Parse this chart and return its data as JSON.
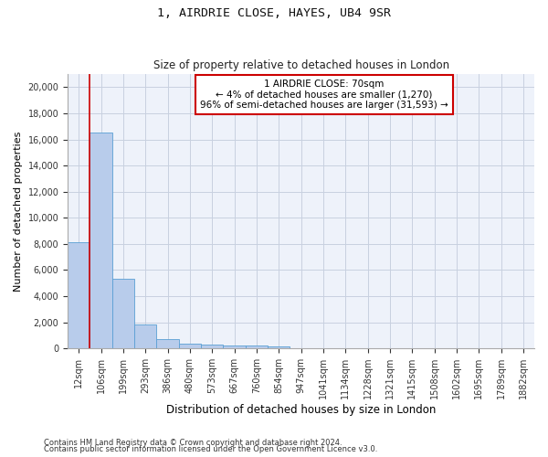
{
  "title1": "1, AIRDRIE CLOSE, HAYES, UB4 9SR",
  "title2": "Size of property relative to detached houses in London",
  "xlabel": "Distribution of detached houses by size in London",
  "ylabel": "Number of detached properties",
  "categories": [
    "12sqm",
    "106sqm",
    "199sqm",
    "293sqm",
    "386sqm",
    "480sqm",
    "573sqm",
    "667sqm",
    "760sqm",
    "854sqm",
    "947sqm",
    "1041sqm",
    "1134sqm",
    "1228sqm",
    "1321sqm",
    "1415sqm",
    "1508sqm",
    "1602sqm",
    "1695sqm",
    "1789sqm",
    "1882sqm"
  ],
  "values": [
    8100,
    16500,
    5300,
    1850,
    700,
    380,
    280,
    220,
    200,
    160,
    0,
    0,
    0,
    0,
    0,
    0,
    0,
    0,
    0,
    0,
    0
  ],
  "bar_color": "#b8cceb",
  "bar_edge_color": "#5a9fd4",
  "vline_x": 0.5,
  "vline_color": "#cc0000",
  "annotation_text": "1 AIRDRIE CLOSE: 70sqm\n← 4% of detached houses are smaller (1,270)\n96% of semi-detached houses are larger (31,593) →",
  "annotation_box_color": "#ffffff",
  "annotation_box_edge": "#cc0000",
  "ylim": [
    0,
    21000
  ],
  "yticks": [
    0,
    2000,
    4000,
    6000,
    8000,
    10000,
    12000,
    14000,
    16000,
    18000,
    20000
  ],
  "footer1": "Contains HM Land Registry data © Crown copyright and database right 2024.",
  "footer2": "Contains public sector information licensed under the Open Government Licence v3.0.",
  "bg_color": "#eef2fa",
  "grid_color": "#c8d0e0"
}
